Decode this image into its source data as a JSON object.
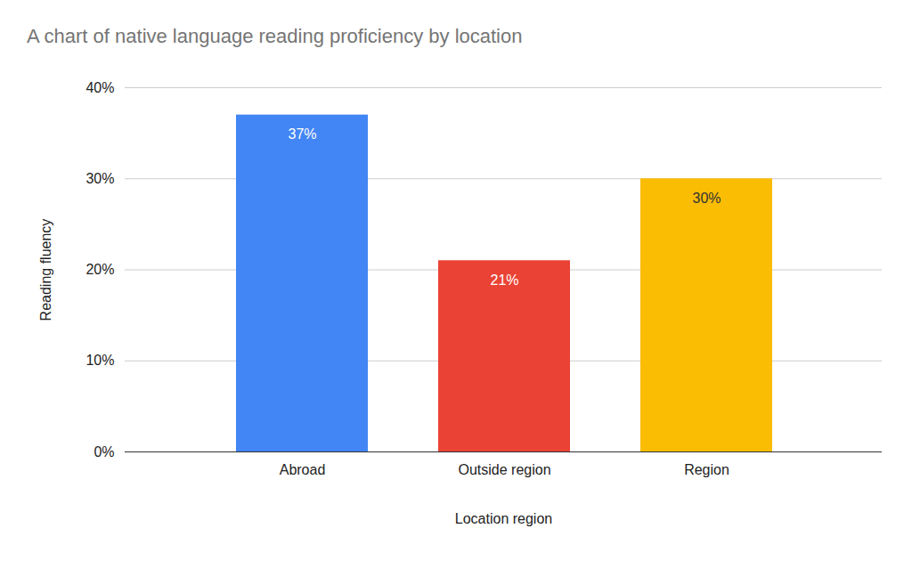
{
  "chart_data": {
    "type": "bar",
    "title": "A chart of native language reading proficiency by location",
    "x_label": "Location region",
    "y_label": "Reading fluency",
    "categories": [
      "Abroad",
      "Outside region",
      "Region"
    ],
    "values": [
      37,
      21,
      30
    ],
    "value_labels": [
      "37%",
      "21%",
      "30%"
    ],
    "colors": [
      "#4285f4",
      "#ea4335",
      "#fbbc04"
    ],
    "ylim": [
      0,
      40
    ],
    "yticks": [
      {
        "value": 0,
        "label": "0%"
      },
      {
        "value": 10,
        "label": "10%"
      },
      {
        "value": 20,
        "label": "20%"
      },
      {
        "value": 30,
        "label": "30%"
      },
      {
        "value": 40,
        "label": "40%"
      }
    ],
    "grid": true,
    "data_labels": true
  }
}
